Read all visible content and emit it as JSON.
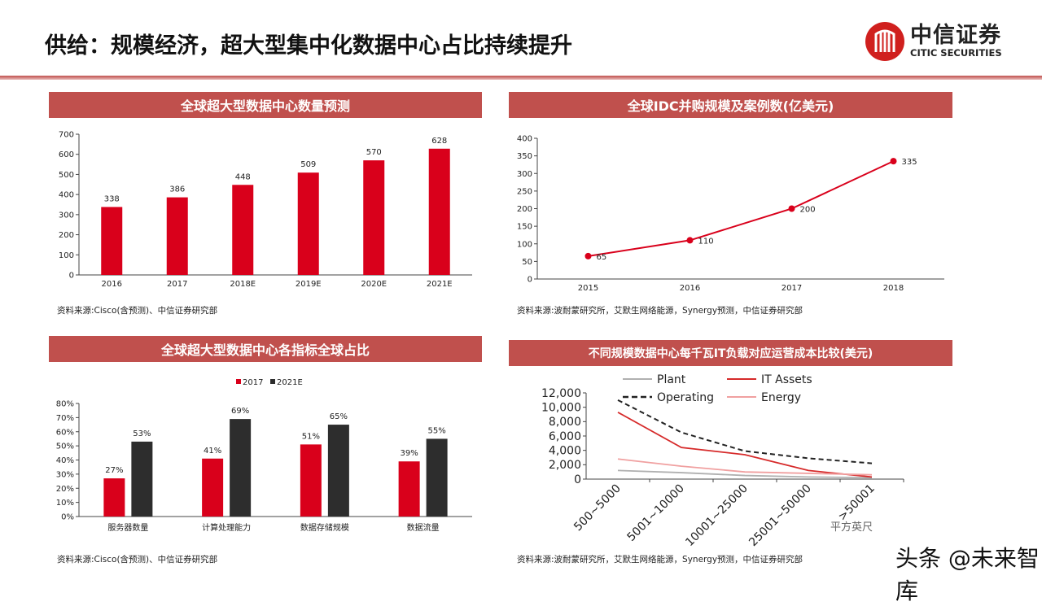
{
  "title": "供给：规模经济，超大型集中化数据中心占比持续提升",
  "logo": {
    "cn": "中信证券",
    "en": "CITIC SECURITIES"
  },
  "watermark": "头条 @未来智库",
  "colors": {
    "accent": "#c0504d",
    "red": "#d9001b",
    "dark": "#2d2d2d"
  },
  "panels": [
    {
      "header": "全球超大型数据中心数量预测",
      "source": "资料来源:Cisco(含预测)、中信证券研究部"
    },
    {
      "header": "全球IDC并购规模及案例数(亿美元)",
      "source": "资料来源:波耐蒙研究所，艾默生网络能源，Synergy预测，中信证券研究部"
    },
    {
      "header": "全球超大型数据中心各指标全球占比",
      "source": "资料来源:Cisco(含预测)、中信证券研究部"
    },
    {
      "header": "不同规模数据中心每千瓦IT负载对应运营成本比较(美元)",
      "source": "资料来源:波耐蒙研究所，艾默生网络能源，Synergy预测，中信证券研究部"
    }
  ],
  "chart_data": [
    {
      "type": "bar",
      "categories": [
        "2016",
        "2017",
        "2018E",
        "2019E",
        "2020E",
        "2021E"
      ],
      "values": [
        338,
        386,
        448,
        509,
        570,
        628
      ],
      "ylim": [
        0,
        700
      ],
      "yticks": [
        0,
        100,
        200,
        300,
        400,
        500,
        600,
        700
      ],
      "color": "#d9001b"
    },
    {
      "type": "line",
      "categories": [
        "2015",
        "2016",
        "2017",
        "2018"
      ],
      "values": [
        65,
        110,
        200,
        335
      ],
      "ylim": [
        0,
        400
      ],
      "yticks": [
        0,
        50,
        100,
        150,
        200,
        250,
        300,
        350,
        400
      ],
      "color": "#d9001b"
    },
    {
      "type": "bar",
      "categories": [
        "服务器数量",
        "计算处理能力",
        "数据存储规模",
        "数据流量"
      ],
      "series": [
        {
          "name": "2017",
          "values": [
            27,
            41,
            51,
            39
          ],
          "color": "#d9001b"
        },
        {
          "name": "2021E",
          "values": [
            53,
            69,
            65,
            55
          ],
          "color": "#2d2d2d"
        }
      ],
      "ylim": [
        0,
        80
      ],
      "yticks": [
        "0%",
        "10%",
        "20%",
        "30%",
        "40%",
        "50%",
        "60%",
        "70%",
        "80%"
      ],
      "legend": "top"
    },
    {
      "type": "line",
      "categories": [
        "500~5000",
        "5001~10000",
        "10001~25000",
        "25001~50000",
        ">50001"
      ],
      "xlabel": "平方英尺",
      "ylim": [
        0,
        12000
      ],
      "yticks": [
        "0",
        "2,000",
        "4,000",
        "6,000",
        "8,000",
        "10,000",
        "12,000"
      ],
      "series": [
        {
          "name": "Plant",
          "values": [
            1200,
            900,
            500,
            300,
            200
          ],
          "color": "#b0b0b0"
        },
        {
          "name": "IT Assets",
          "values": [
            9300,
            4400,
            3400,
            1200,
            300
          ],
          "color": "#d62a2a"
        },
        {
          "name": "Operating",
          "values": [
            11000,
            6500,
            3900,
            2900,
            2200
          ],
          "color": "#222",
          "dash": true
        },
        {
          "name": "Energy",
          "values": [
            2800,
            1800,
            1000,
            800,
            600
          ],
          "color": "#f0a0a0"
        }
      ],
      "legend": "top"
    }
  ]
}
